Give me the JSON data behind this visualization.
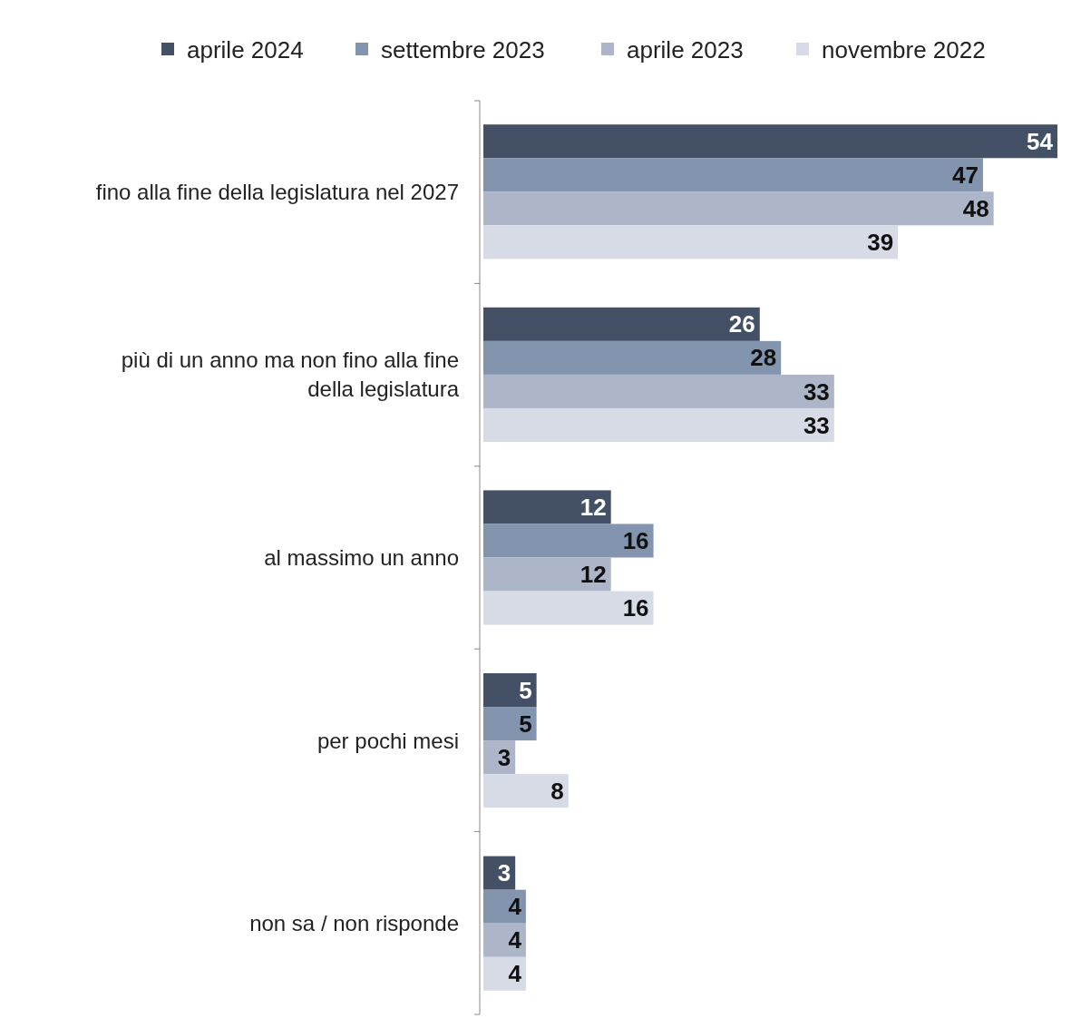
{
  "chart_data": {
    "type": "bar",
    "orientation": "horizontal",
    "categories": [
      "fino alla fine della legislatura nel 2027",
      "più di un anno ma non fino alla fine della legislatura",
      "al massimo un anno",
      "per pochi mesi",
      "non sa / non risponde"
    ],
    "series": [
      {
        "name": "aprile 2024",
        "color": "#435066",
        "values": [
          54,
          26,
          12,
          5,
          3
        ]
      },
      {
        "name": "settembre 2023",
        "color": "#8394ae",
        "values": [
          47,
          28,
          16,
          5,
          4
        ]
      },
      {
        "name": "aprile 2023",
        "color": "#adb6c9",
        "values": [
          48,
          33,
          12,
          3,
          4
        ]
      },
      {
        "name": "novembre 2022",
        "color": "#d6dbe5",
        "values": [
          39,
          33,
          16,
          8,
          4
        ]
      }
    ],
    "data_labels": true,
    "legend": "top",
    "grid": false
  }
}
